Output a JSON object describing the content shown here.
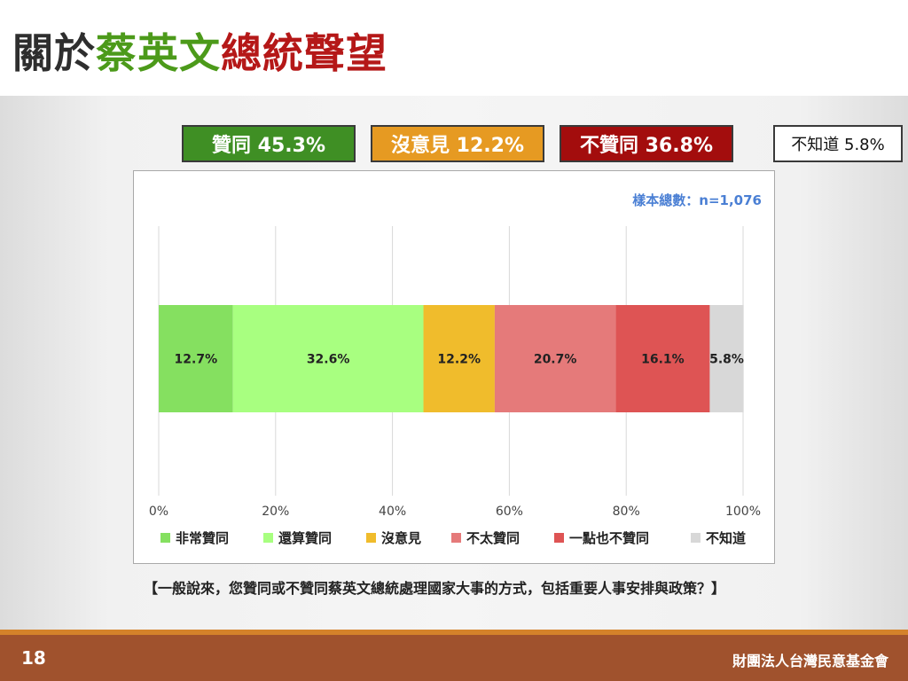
{
  "slide": {
    "title_part1": "關於",
    "title_part2": "蔡英文",
    "title_part3": "總統聲望",
    "question": "【一般說來，您贊同或不贊同蔡英文總統處理國家大事的方式，包括重要人事安排與政策？】",
    "page_number": "18",
    "organization": "財團法人台灣民意基金會"
  },
  "summary": [
    {
      "label": "贊同 45.3%",
      "bg": "#3f8f24",
      "color": "#ffffff"
    },
    {
      "label": "沒意見 12.2%",
      "bg": "#e69a22",
      "color": "#ffffff"
    },
    {
      "label": "不贊同 36.8%",
      "bg": "#a30d0d",
      "color": "#ffffff"
    },
    {
      "label": "不知道 5.8%",
      "bg": "#ffffff",
      "color": "#111111"
    }
  ],
  "chart_data": {
    "type": "bar",
    "orientation": "horizontal-stacked-100",
    "sample_note": "樣本總數：n=1,076",
    "xlim": [
      0,
      100
    ],
    "x_ticks": [
      "0%",
      "20%",
      "40%",
      "60%",
      "80%",
      "100%"
    ],
    "grid": true,
    "legend_position": "bottom",
    "series": [
      {
        "name": "非常贊同",
        "value": 12.7,
        "label": "12.7%",
        "color": "#85e060"
      },
      {
        "name": "還算贊同",
        "value": 32.6,
        "label": "32.6%",
        "color": "#a8ff80"
      },
      {
        "name": "沒意見",
        "value": 12.2,
        "label": "12.2%",
        "color": "#f0bc2c"
      },
      {
        "name": "不太贊同",
        "value": 20.7,
        "label": "20.7%",
        "color": "#e57a7a"
      },
      {
        "name": "一點也不贊同",
        "value": 16.1,
        "label": "16.1%",
        "color": "#de5454"
      },
      {
        "name": "不知道",
        "value": 5.8,
        "label": "5.8%",
        "color": "#d8d8d8"
      }
    ]
  }
}
